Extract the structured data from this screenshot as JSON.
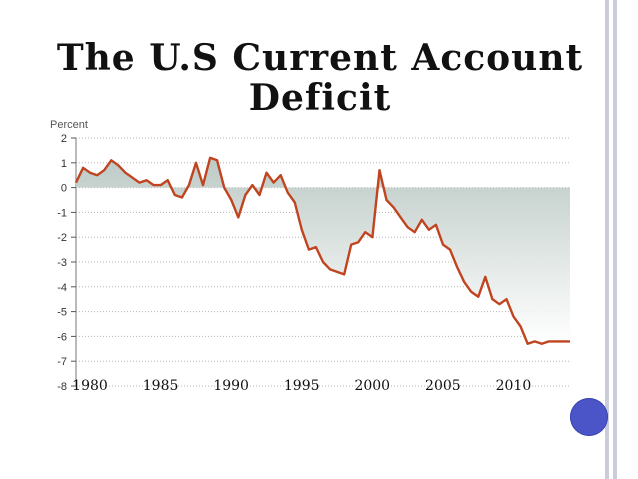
{
  "slide": {
    "title": "The U.S Current Account Deficit",
    "accent_color": "#4b55c8",
    "rail_color": "#c9cddb"
  },
  "chart_data": {
    "type": "area",
    "title": "The U.S Current Account Deficit",
    "ylabel": "Percent",
    "xlabel": "",
    "ylim": [
      -8,
      2
    ],
    "xlim": [
      1980,
      2015
    ],
    "yticks": [
      2,
      1,
      0,
      -1,
      -2,
      -3,
      -4,
      -5,
      -6,
      -7,
      -8
    ],
    "ytick_labels": [
      "2",
      "1",
      "0",
      "-1",
      "-2",
      "-3",
      "-4",
      "-5",
      "-6",
      "-7",
      "-8"
    ],
    "xticks": [
      1980,
      1985,
      1990,
      1995,
      2000,
      2005,
      2010
    ],
    "xtick_labels": [
      "1980",
      "1985",
      "1990",
      "1995",
      "2000",
      "2005",
      "2010"
    ],
    "grid": true,
    "line_color": "#c0441f",
    "fill_color": "#b9c7c3",
    "series": [
      {
        "x": [
          1980,
          1980.5,
          1981,
          1981.5,
          1982,
          1982.5,
          1983,
          1983.5,
          1984,
          1984.5,
          1985,
          1985.5,
          1986,
          1986.5,
          1987,
          1987.5,
          1988,
          1988.5,
          1989,
          1989.5,
          1990,
          1990.5,
          1991,
          1991.5,
          1992,
          1992.5,
          1993,
          1993.5,
          1994,
          1994.5,
          1995,
          1995.5,
          1996,
          1996.5,
          1997,
          1997.5,
          1998,
          1998.5,
          1999,
          1999.5,
          2000,
          2000.5,
          2001,
          2001.5,
          2002,
          2002.5,
          2003,
          2003.5,
          2004,
          2004.5,
          2005,
          2005.5,
          2006,
          2006.5,
          2007,
          2007.5,
          2008,
          2008.5,
          2009,
          2009.5,
          2010,
          2010.5,
          2011,
          2011.5,
          2012,
          2012.5,
          2013,
          2013.5,
          2014,
          2014.5,
          2015
        ],
        "values": [
          0.2,
          0.8,
          0.6,
          0.5,
          0.7,
          1.1,
          0.9,
          0.6,
          0.4,
          0.2,
          0.3,
          0.1,
          0.1,
          0.3,
          -0.3,
          -0.4,
          0.1,
          1.0,
          0.1,
          1.2,
          1.1,
          0.0,
          -0.5,
          -1.2,
          -0.3,
          0.1,
          -0.3,
          0.6,
          0.2,
          0.5,
          -0.2,
          -0.6,
          -1.7,
          -2.5,
          -2.4,
          -3.0,
          -3.3,
          -3.4,
          -3.5,
          -2.3,
          -2.2,
          -1.8,
          -2.0,
          0.7,
          -0.5,
          -0.8,
          -1.2,
          -1.6,
          -1.8,
          -1.3,
          -1.7,
          -1.5,
          -2.3,
          -2.5,
          -3.2,
          -3.8,
          -4.2,
          -4.4,
          -3.6,
          -4.5,
          -4.7,
          -4.5,
          -5.2,
          -5.6,
          -6.3,
          -6.2,
          -6.3,
          -6.2,
          -6.2,
          -6.2,
          -6.2
        ]
      }
    ]
  }
}
